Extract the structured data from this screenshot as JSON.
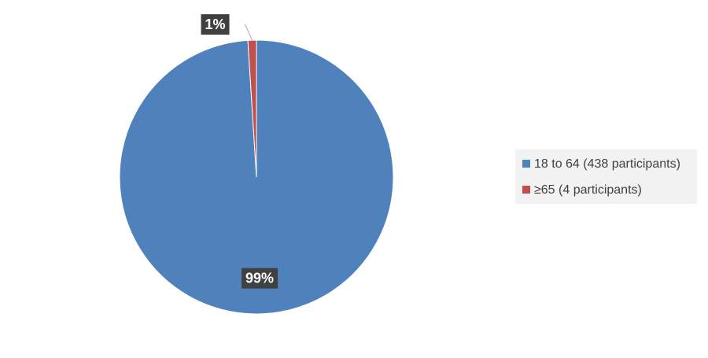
{
  "chart_data": {
    "type": "pie",
    "categories": [
      "18 to 64 (438 participants)",
      "≥65 (4 participants)"
    ],
    "values": [
      99,
      1
    ],
    "value_labels": [
      "99%",
      "1%"
    ],
    "colors": [
      "#4f81bd",
      "#c0504d"
    ],
    "legend": "right"
  }
}
